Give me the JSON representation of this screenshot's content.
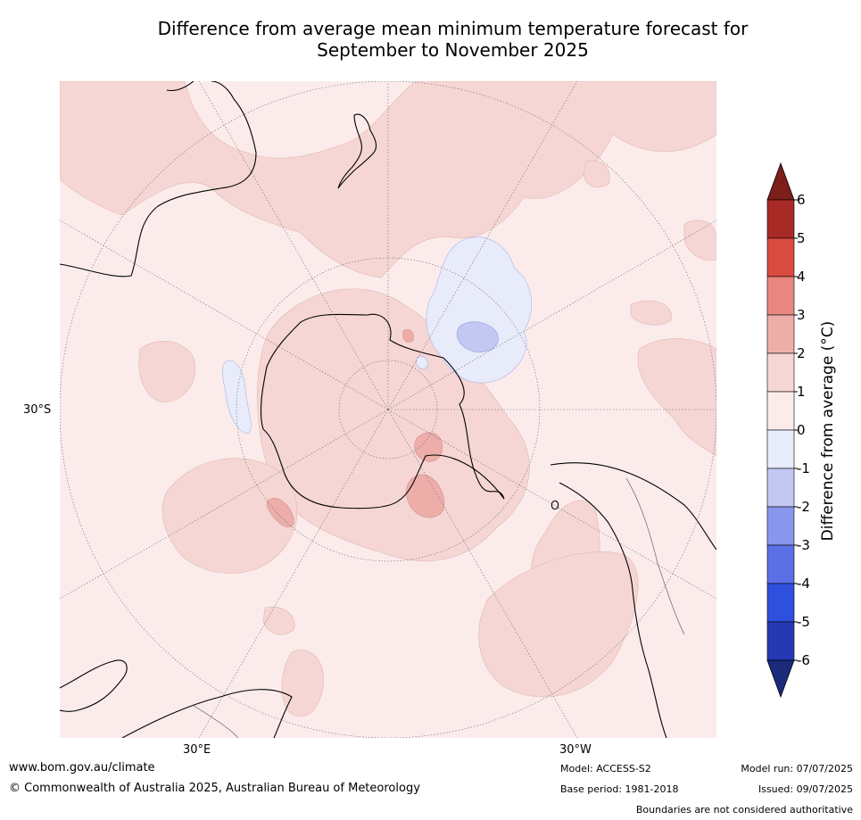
{
  "title_line1": "Difference from average mean minimum temperature forecast for",
  "title_line2": "September to November 2025",
  "map": {
    "projection": "south polar stereographic",
    "lat_label": "30°S",
    "lon_label_left": "30°E",
    "lon_label_right": "30°W",
    "colors": {
      "background": "#fbeceb",
      "anomaly_0_1": "#fbeceb",
      "anomaly_1_2": "#f5d6d4",
      "anomaly_2_3": "#edaeaa",
      "anomaly_neg_1_0": "#e8ebfa",
      "anomaly_neg_2_neg_1": "#c3c8f3",
      "coastline": "#000000",
      "border": "#808080",
      "gridline": "#6b6b6b"
    }
  },
  "colorbar": {
    "label": "Difference from average (°C)",
    "ticks": [
      "6",
      "5",
      "4",
      "3",
      "2",
      "1",
      "0",
      "-1",
      "-2",
      "-3",
      "-4",
      "-5",
      "-6"
    ],
    "colors": [
      "#7c1e19",
      "#a82a26",
      "#d94b3f",
      "#e8877f",
      "#edaeaa",
      "#f5d6d4",
      "#fbeceb",
      "#e8ebfa",
      "#c3c8f3",
      "#8a96ec",
      "#5b6fe6",
      "#2f4fdf",
      "#2638b4",
      "#1b2a7a"
    ]
  },
  "footer": {
    "url": "www.bom.gov.au/climate",
    "copyright": "© Commonwealth of Australia 2025, Australian Bureau of Meteorology",
    "model": "Model: ACCESS-S2",
    "base_period": "Base period: 1981-2018",
    "model_run": "Model run: 07/07/2025",
    "issued": "Issued: 09/07/2025",
    "disclaimer": "Boundaries are not considered authoritative"
  }
}
